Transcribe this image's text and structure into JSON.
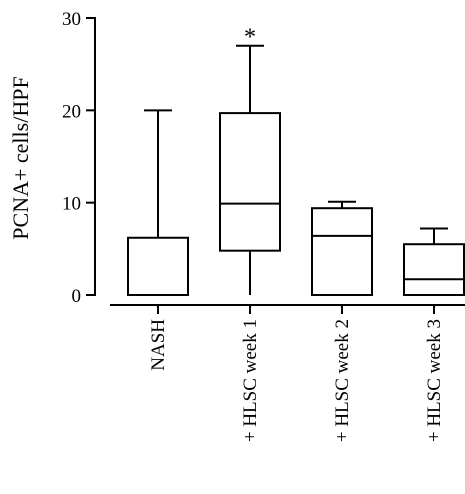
{
  "chart_data": {
    "type": "box",
    "ylabel": "PCNA+ cells/HPF",
    "xlabel": "",
    "ylim": [
      0,
      30
    ],
    "yticks": [
      0,
      10,
      20,
      30
    ],
    "ytick_labels": [
      "0",
      "10",
      "20",
      "30"
    ],
    "grid": false,
    "legend": "none",
    "categories": [
      "NASH",
      "+ HLSC week 1",
      "+ HLSC week 2",
      "+ HLSC week 3"
    ],
    "boxes": [
      {
        "category": "NASH",
        "min": 0,
        "q1": 0,
        "median": 0,
        "q3": 6.2,
        "max": 20
      },
      {
        "category": "+ HLSC week 1",
        "min": 0,
        "q1": 4.8,
        "median": 9.9,
        "q3": 19.7,
        "max": 27
      },
      {
        "category": "+ HLSC week 2",
        "min": 0,
        "q1": 0,
        "median": 6.4,
        "q3": 9.4,
        "max": 10.1
      },
      {
        "category": "+ HLSC week 3",
        "min": 0,
        "q1": 0,
        "median": 1.7,
        "q3": 5.5,
        "max": 7.2
      }
    ],
    "annotations": [
      {
        "category": "+ HLSC week 1",
        "text": "*"
      }
    ]
  }
}
